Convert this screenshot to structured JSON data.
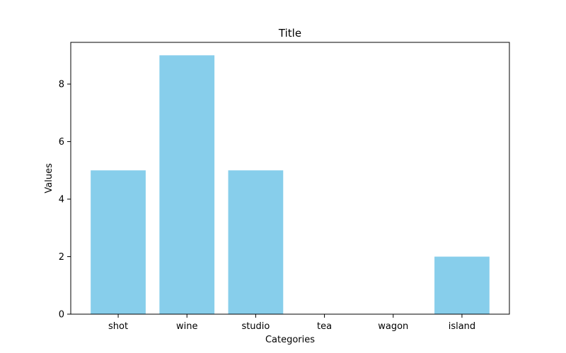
{
  "chart_data": {
    "type": "bar",
    "title": "Title",
    "xlabel": "Categories",
    "ylabel": "Values",
    "categories": [
      "shot",
      "wine",
      "studio",
      "tea",
      "wagon",
      "island"
    ],
    "values": [
      5,
      9,
      5,
      0,
      0,
      2
    ],
    "ylim": [
      0,
      9.45
    ],
    "yticks": [
      0,
      2,
      4,
      6,
      8
    ],
    "bar_color": "#87CEEB",
    "grid": false,
    "legend": false
  }
}
